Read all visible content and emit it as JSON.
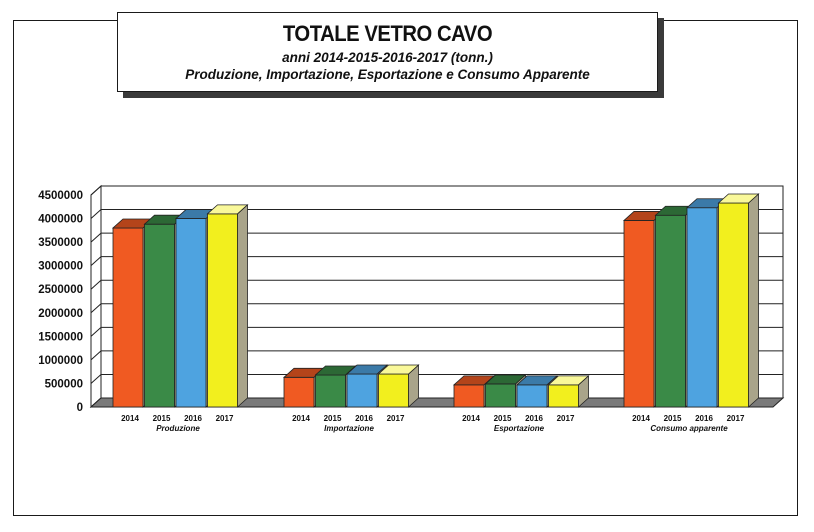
{
  "title": {
    "main": "TOTALE VETRO CAVO",
    "sub1": "anni 2014-2015-2016-2017 (tonn.)",
    "sub2": "Produzione, Importazione, Esportazione e Consumo Apparente"
  },
  "chart_data": {
    "type": "bar",
    "style": "3d-clustered",
    "ylim": [
      0,
      4500000
    ],
    "yticks": [
      0,
      500000,
      1000000,
      1500000,
      2000000,
      2500000,
      3000000,
      3500000,
      4000000,
      4500000
    ],
    "grid": true,
    "series_labels": [
      "2014",
      "2015",
      "2016",
      "2017"
    ],
    "colors": [
      "#f05a22",
      "#3a8a47",
      "#4ea3e0",
      "#f2ef1e"
    ],
    "groups": [
      {
        "label": "Produzione",
        "values": [
          3800000,
          3880000,
          4000000,
          4100000
        ]
      },
      {
        "label": "Importazione",
        "values": [
          630000,
          680000,
          700000,
          700000
        ]
      },
      {
        "label": "Esportazione",
        "values": [
          470000,
          490000,
          470000,
          470000
        ]
      },
      {
        "label": "Consumo apparente",
        "values": [
          3960000,
          4070000,
          4230000,
          4330000
        ]
      }
    ]
  }
}
